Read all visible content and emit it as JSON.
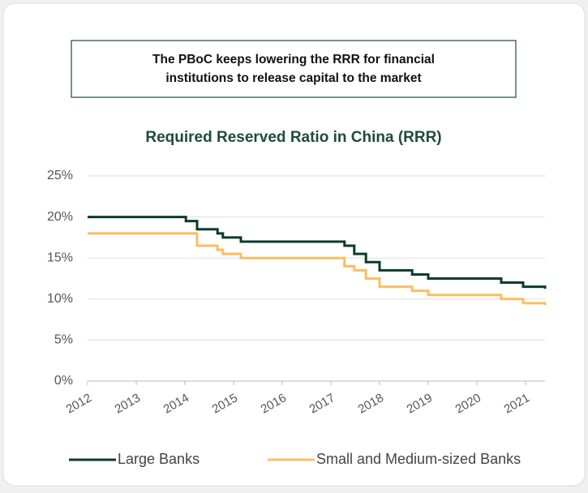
{
  "chart_data": {
    "type": "step-line",
    "annotation": "The PBoC keeps lowering the RRR for financial institutions to release capital to the market",
    "title": "Required Reserved Ratio in China (RRR)",
    "x": [
      2012,
      2014.02,
      2014.25,
      2014.67,
      2014.78,
      2015.15,
      2017.28,
      2017.48,
      2017.72,
      2018.0,
      2018.67,
      2019.0,
      2020.5,
      2020.95,
      2021.4
    ],
    "series": [
      {
        "name": "Large Banks",
        "color": "#0c3b2c",
        "values": [
          20,
          19.5,
          18.5,
          18,
          17.5,
          17,
          16.5,
          15.5,
          14.5,
          13.5,
          13,
          12.5,
          12,
          11.5,
          11.25
        ]
      },
      {
        "name": "Small and Medium-sized Banks",
        "color": "#fbbd63",
        "values": [
          18,
          18,
          16.5,
          16,
          15.5,
          15,
          14,
          13.5,
          12.5,
          11.5,
          11,
          10.5,
          10,
          9.5,
          9.25
        ]
      }
    ],
    "xlim": [
      2012,
      2021.4
    ],
    "xticks": [
      2012,
      2013,
      2014,
      2015,
      2016,
      2017,
      2018,
      2019,
      2020,
      2021
    ],
    "ylim": [
      0,
      25
    ],
    "yticks": [
      {
        "value": 0,
        "label": "0%"
      },
      {
        "value": 5,
        "label": "5%"
      },
      {
        "value": 10,
        "label": "10%"
      },
      {
        "value": 15,
        "label": "15%"
      },
      {
        "value": 20,
        "label": "20%"
      },
      {
        "value": 25,
        "label": "25%"
      }
    ],
    "grid": true
  }
}
